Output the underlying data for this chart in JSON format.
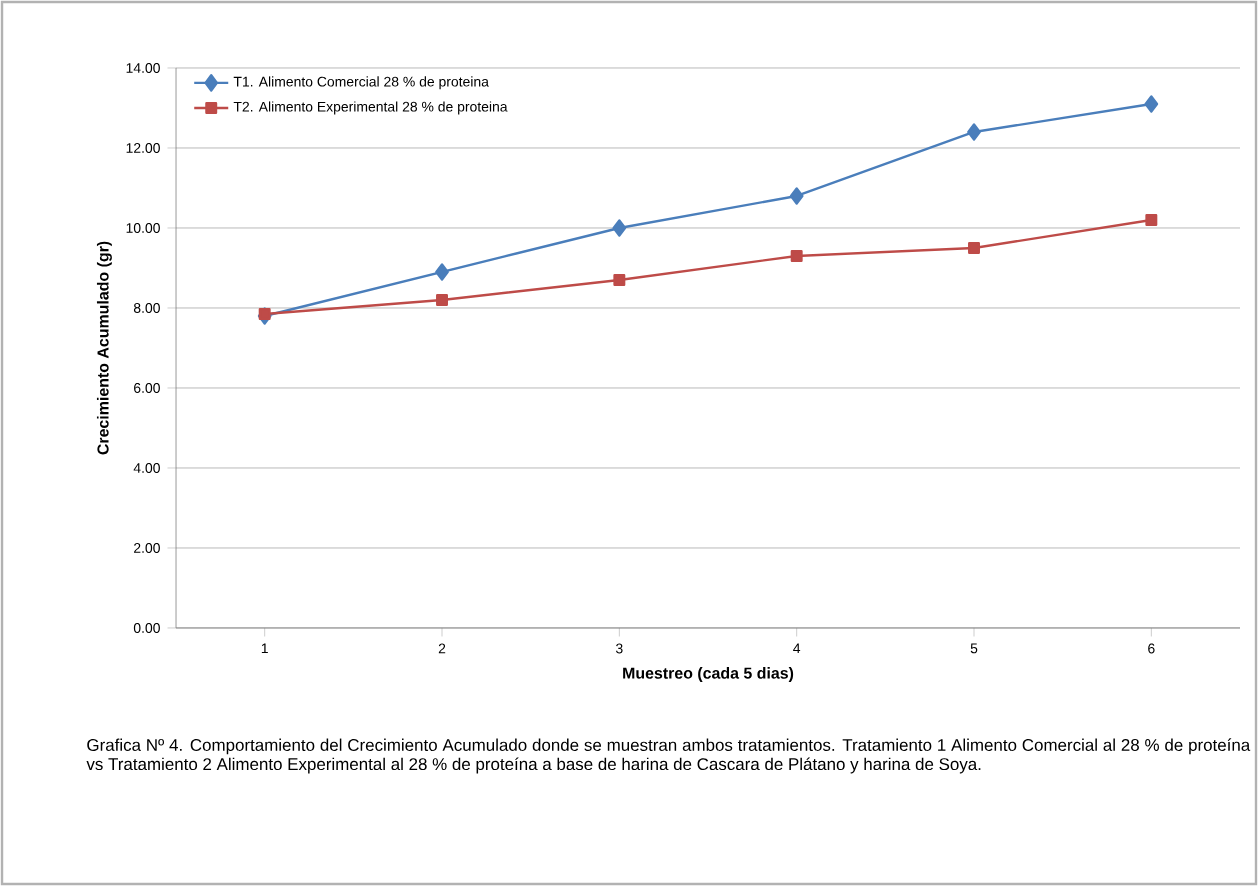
{
  "chart_data": {
    "type": "line",
    "xlabel": "Muestreo (cada 5 dias)",
    "ylabel": "Crecimiento Acumulado (gr)",
    "categories": [
      "1",
      "2",
      "3",
      "4",
      "5",
      "6"
    ],
    "series": [
      {
        "name": "T1. Alimento Comercial 28 % de proteina",
        "color": "#4a7ebb",
        "marker": "diamond",
        "values": [
          7.8,
          8.9,
          10.0,
          10.8,
          12.4,
          13.1
        ]
      },
      {
        "name": "T2. Alimento Experimental 28 % de proteina",
        "color": "#be4b48",
        "marker": "square",
        "values": [
          7.85,
          8.2,
          8.7,
          9.3,
          9.5,
          10.2
        ]
      }
    ],
    "ylim": [
      0,
      14
    ],
    "yticks": [
      {
        "value": 0,
        "label": "0.00"
      },
      {
        "value": 2,
        "label": "2.00"
      },
      {
        "value": 4,
        "label": "4.00"
      },
      {
        "value": 6,
        "label": "6.00"
      },
      {
        "value": 8,
        "label": "8.00"
      },
      {
        "value": 10,
        "label": "10.00"
      },
      {
        "value": 12,
        "label": "12.00"
      },
      {
        "value": 14,
        "label": "14.00"
      }
    ],
    "grid": "y",
    "legend": "top left",
    "line_style": "solid",
    "annotations": [
      "Grafica Nº 4. Comportamiento del Crecimiento Acumulado donde se muestran ambos tratamientos. Tratamiento 1 Alimento Comercial al 28 % de proteína vs Tratamiento 2 Alimento Experimental al 28 % de proteína a base de harina de Cascara de Plátano y harina de Soya."
    ]
  }
}
